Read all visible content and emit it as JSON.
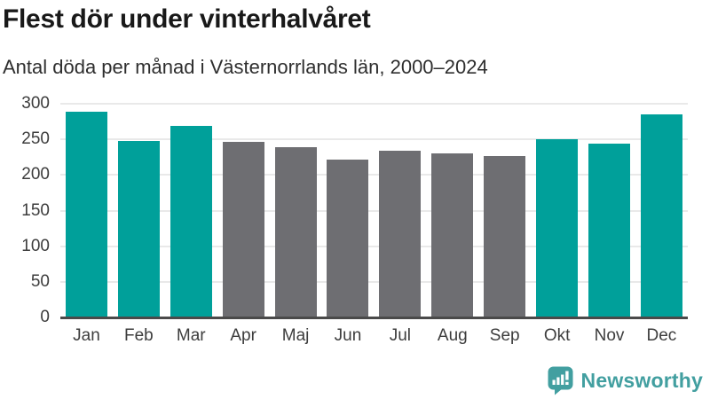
{
  "header": {
    "title": "Flest dör under vinterhalvåret",
    "subtitle": "Antal döda per månad i Västernorrlands län, 2000–2024"
  },
  "chart_data": {
    "type": "bar",
    "title": "Flest dör under vinterhalvåret",
    "subtitle": "Antal döda per månad i Västernorrlands län, 2000–2024",
    "categories": [
      "Jan",
      "Feb",
      "Mar",
      "Apr",
      "Maj",
      "Jun",
      "Jul",
      "Aug",
      "Sep",
      "Okt",
      "Nov",
      "Dec"
    ],
    "values": [
      289,
      248,
      269,
      246,
      239,
      222,
      234,
      230,
      227,
      250,
      244,
      285
    ],
    "highlighted": [
      true,
      true,
      true,
      false,
      false,
      false,
      false,
      false,
      false,
      true,
      true,
      true
    ],
    "xlabel": "",
    "ylabel": "",
    "ylim": [
      0,
      300
    ],
    "yticks": [
      0,
      50,
      100,
      150,
      200,
      250,
      300
    ],
    "grid": true,
    "legend": false,
    "colors": {
      "highlight": "#00a09a",
      "muted": "#6e6e72",
      "gridline": "#e9e9e9",
      "axis_line": "#4a4a4a",
      "tick_text": "#3d3d3d"
    }
  },
  "footer": {
    "brand": "Newsworthy",
    "logo_icon": "speech-bubble-bar-chart-icon",
    "logo_color": "#429fa0"
  }
}
